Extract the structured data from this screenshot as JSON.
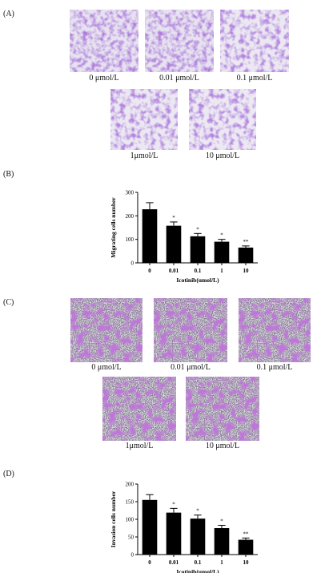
{
  "panels": {
    "A": {
      "label": "(A)",
      "images": [
        {
          "caption": "0 μmol/L"
        },
        {
          "caption": "0.01 μmol/L"
        },
        {
          "caption": "0.1 μmol/L"
        },
        {
          "caption": "1μmol/L"
        },
        {
          "caption": "10 μmol/L"
        }
      ]
    },
    "B": {
      "label": "(B)"
    },
    "C": {
      "label": "(C)",
      "images": [
        {
          "caption": "0 μmol/L"
        },
        {
          "caption": "0.01 μmol/L"
        },
        {
          "caption": "0.1 μmol/L"
        },
        {
          "caption": "1μmol/L"
        },
        {
          "caption": "10 μmol/L"
        }
      ]
    },
    "D": {
      "label": "(D)"
    }
  },
  "chart_data": [
    {
      "type": "bar",
      "categories": [
        "0",
        "0.01",
        "0.1",
        "1",
        "10"
      ],
      "values": [
        228,
        158,
        113,
        90,
        65
      ],
      "errors": [
        28,
        16,
        12,
        10,
        7
      ],
      "significance": [
        "",
        "*",
        "*",
        "*",
        "**"
      ],
      "xlabel": "Icotinib(umol/L)",
      "ylabel": "Migrating cells number",
      "ylim": [
        0,
        300
      ],
      "yticks": [
        "0",
        "100",
        "200",
        "300"
      ],
      "bar_color": "#000000"
    },
    {
      "type": "bar",
      "categories": [
        "0",
        "0.01",
        "0.1",
        "1",
        "10"
      ],
      "values": [
        155,
        119,
        102,
        75,
        42
      ],
      "errors": [
        15,
        12,
        10,
        8,
        5
      ],
      "significance": [
        "",
        "*",
        "*",
        "*",
        "**"
      ],
      "xlabel": "Icotinib(umol/L)",
      "ylabel": "Invasion cells number",
      "ylim": [
        0,
        200
      ],
      "yticks": [
        "0",
        "50",
        "100",
        "150",
        "200"
      ],
      "bar_color": "#000000"
    }
  ]
}
